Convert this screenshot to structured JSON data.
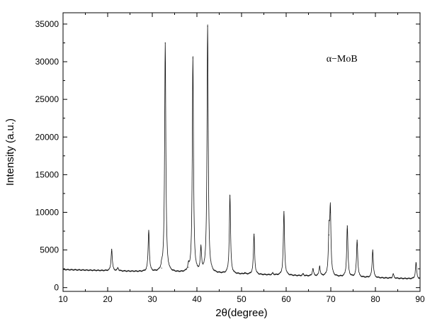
{
  "chart_data": {
    "type": "line",
    "title": "",
    "xlabel": "2θ(degree)",
    "ylabel": "Intensity (a.u.)",
    "xlim": [
      10,
      90
    ],
    "ylim": [
      -500,
      36500
    ],
    "xticks": [
      10,
      20,
      30,
      40,
      50,
      60,
      70,
      80,
      90
    ],
    "yticks": [
      0,
      5000,
      10000,
      15000,
      20000,
      25000,
      30000,
      35000
    ],
    "xtick_labels": [
      "10",
      "20",
      "30",
      "40",
      "50",
      "60",
      "70",
      "80",
      "90"
    ],
    "ytick_labels": [
      "0",
      "5000",
      "10000",
      "15000",
      "20000",
      "25000",
      "30000",
      "35000"
    ],
    "grid": false,
    "annotations": [
      {
        "text": "α−MoB",
        "x": 69,
        "y": 30000
      }
    ],
    "series": [
      {
        "name": "",
        "color": "#111111",
        "background": {
          "start": 2400,
          "end": 1150
        },
        "peaks": [
          {
            "x": 20.9,
            "y": 5100
          },
          {
            "x": 22.3,
            "y": 2600
          },
          {
            "x": 29.2,
            "y": 7600
          },
          {
            "x": 32.1,
            "y": 2600
          },
          {
            "x": 32.9,
            "y": 32500
          },
          {
            "x": 38.1,
            "y": 2700
          },
          {
            "x": 39.1,
            "y": 30500
          },
          {
            "x": 40.9,
            "y": 5000
          },
          {
            "x": 42.4,
            "y": 34700
          },
          {
            "x": 47.4,
            "y": 12200
          },
          {
            "x": 50.7,
            "y": 1900
          },
          {
            "x": 52.8,
            "y": 7100
          },
          {
            "x": 57.0,
            "y": 1900
          },
          {
            "x": 59.5,
            "y": 10100
          },
          {
            "x": 63.8,
            "y": 1800
          },
          {
            "x": 66.0,
            "y": 2500
          },
          {
            "x": 67.5,
            "y": 2800
          },
          {
            "x": 69.6,
            "y": 7000
          },
          {
            "x": 69.9,
            "y": 10000
          },
          {
            "x": 73.7,
            "y": 8200
          },
          {
            "x": 75.9,
            "y": 6300
          },
          {
            "x": 79.4,
            "y": 5000
          },
          {
            "x": 84.0,
            "y": 1800
          },
          {
            "x": 89.1,
            "y": 3300
          }
        ]
      }
    ]
  }
}
